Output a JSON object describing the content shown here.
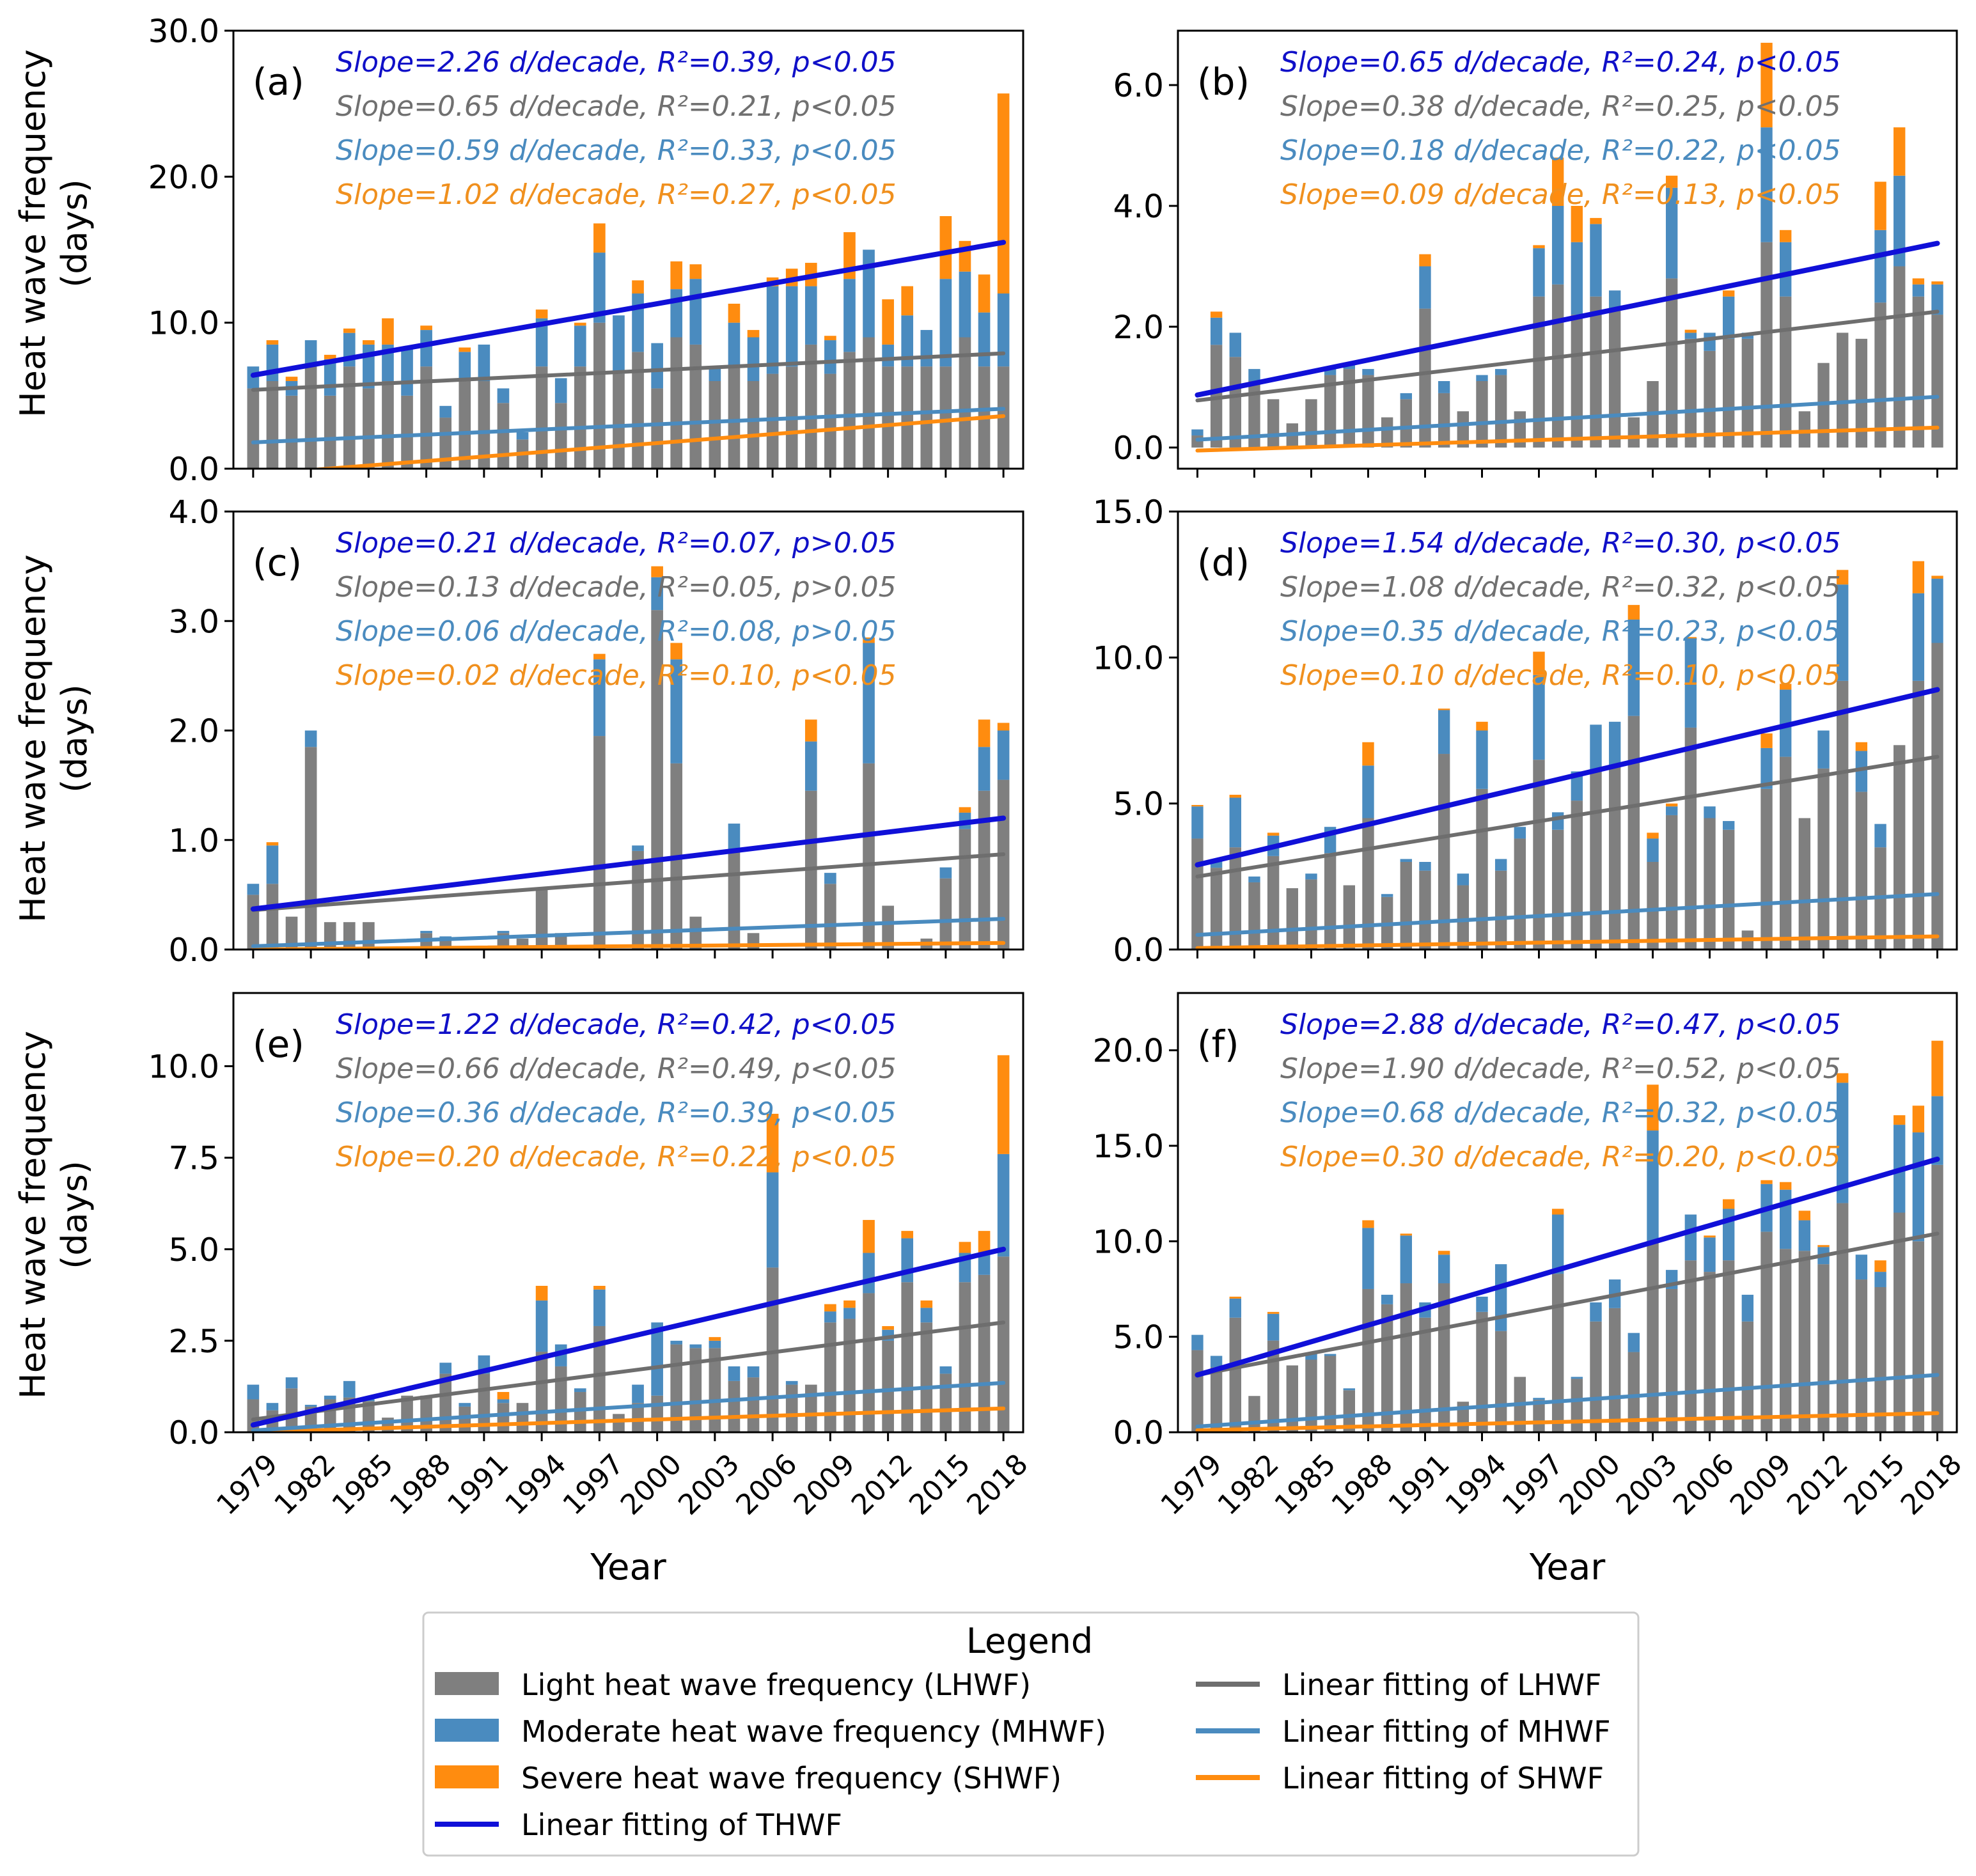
{
  "colors": {
    "light": "#7f7f7f",
    "moderate": "#4a8bbf",
    "severe": "#ff8c0f",
    "thwf_fit": "#1010d8",
    "lhwf_fit": "#6e6e6e",
    "mhwf_fit": "#4a8bbf",
    "shwf_fit": "#ff8c0f",
    "stat_total": "#1010c8",
    "stat_light": "#707070",
    "stat_moderate": "#4a8bbf",
    "stat_severe": "#f0901e"
  },
  "shared": {
    "xlabel": "Year",
    "ylabel_line1": "Heat wave frequency",
    "ylabel_line2": "(days)",
    "x_tick_labels": [
      "1979",
      "1982",
      "1985",
      "1988",
      "1991",
      "1994",
      "1997",
      "2000",
      "2003",
      "2006",
      "2009",
      "2012",
      "2015",
      "2018"
    ]
  },
  "legend": {
    "title": "Legend",
    "entries": [
      {
        "label": "Light heat wave frequency (LHWF)",
        "kind": "patch",
        "color_key": "light"
      },
      {
        "label": "Moderate heat wave frequency (MHWF)",
        "kind": "patch",
        "color_key": "moderate"
      },
      {
        "label": "Severe heat wave frequency (SHWF)",
        "kind": "patch",
        "color_key": "severe"
      },
      {
        "label": "Linear fitting of THWF",
        "kind": "line",
        "color_key": "thwf_fit"
      },
      {
        "label": "Linear fitting of LHWF",
        "kind": "line",
        "color_key": "lhwf_fit"
      },
      {
        "label": "Linear fitting of MHWF",
        "kind": "line",
        "color_key": "mhwf_fit"
      },
      {
        "label": "Linear fitting of SHWF",
        "kind": "line",
        "color_key": "shwf_fit"
      }
    ]
  },
  "chart_data": [
    {
      "type": "bar",
      "panel": "(a)",
      "xlabel": "",
      "ylim": [
        0,
        30
      ],
      "yticks": [
        0,
        10,
        20,
        30
      ],
      "ytick_labels": [
        "0.0",
        "10.0",
        "20.0",
        "30.0"
      ],
      "stats": [
        "Slope=2.26 d/decade, R²=0.39, p<0.05",
        "Slope=0.65 d/decade, R²=0.21, p<0.05",
        "Slope=0.59 d/decade, R²=0.33, p<0.05",
        "Slope=1.02 d/decade, R²=0.27, p<0.05"
      ],
      "light": [
        5.5,
        6.0,
        5.0,
        7.0,
        5.0,
        7.0,
        5.5,
        6.0,
        5.0,
        7.0,
        3.5,
        6.0,
        6.0,
        4.5,
        2.0,
        7.0,
        4.5,
        7.0,
        10.0,
        6.5,
        8.0,
        5.5,
        9.0,
        8.5,
        6.0,
        7.0,
        6.0,
        6.5,
        7.0,
        8.5,
        6.5,
        8.0,
        9.0,
        7.0,
        7.0,
        7.0,
        7.0,
        9.0,
        7.0,
        7.0
      ],
      "moderate": [
        1.5,
        2.5,
        1.0,
        1.8,
        2.5,
        2.3,
        3.0,
        2.5,
        3.2,
        2.5,
        0.8,
        2.0,
        2.5,
        1.0,
        0.5,
        3.3,
        1.7,
        2.8,
        4.8,
        4.0,
        4.0,
        3.1,
        3.3,
        4.5,
        1.0,
        3.0,
        3.0,
        6.0,
        5.5,
        4.0,
        2.3,
        5.0,
        6.0,
        1.5,
        3.5,
        2.5,
        6.0,
        4.5,
        3.7,
        5.0
      ],
      "severe": [
        0,
        0.3,
        0.3,
        0,
        0.3,
        0.3,
        0.3,
        1.8,
        0,
        0.3,
        0,
        0.3,
        0,
        0,
        0,
        0.6,
        0,
        0.2,
        2.0,
        0,
        0.9,
        0,
        1.9,
        1.0,
        0,
        1.3,
        0.5,
        0.6,
        1.2,
        1.6,
        0.3,
        3.2,
        0,
        3.1,
        2.0,
        0,
        4.3,
        2.1,
        2.6,
        13.7
      ],
      "fits": {
        "thwf": [
          6.4,
          15.5
        ],
        "lhwf": [
          5.4,
          7.9
        ],
        "mhwf": [
          1.8,
          4.1
        ],
        "shwf": [
          -0.4,
          3.6
        ]
      }
    },
    {
      "type": "bar",
      "panel": "(b)",
      "xlabel": "",
      "ylim": [
        -0.35,
        6.9
      ],
      "yticks": [
        0,
        2,
        4,
        6
      ],
      "ytick_labels": [
        "0.0",
        "2.0",
        "4.0",
        "6.0"
      ],
      "stats": [
        "Slope=0.65 d/decade, R²=0.24, p<0.05",
        "Slope=0.38 d/decade, R²=0.25, p<0.05",
        "Slope=0.18 d/decade, R²=0.22, p<0.05",
        "Slope=0.09 d/decade, R²=0.13, p<0.05"
      ],
      "light": [
        0.2,
        1.7,
        1.5,
        1.1,
        0.8,
        0.4,
        0.8,
        1.2,
        1.3,
        1.2,
        0.5,
        0.8,
        2.3,
        0.9,
        0.6,
        1.1,
        1.2,
        0.6,
        2.5,
        2.7,
        2.2,
        2.5,
        2.3,
        0.5,
        1.1,
        2.8,
        1.8,
        1.6,
        1.8,
        1.8,
        3.4,
        2.5,
        0.6,
        1.4,
        1.9,
        1.8,
        2.4,
        3.0,
        2.5,
        2.2
      ],
      "moderate": [
        0.1,
        0.45,
        0.4,
        0.2,
        0,
        0,
        0,
        0.1,
        0.1,
        0.1,
        0,
        0.1,
        0.7,
        0.2,
        0,
        0.1,
        0.1,
        0,
        0.8,
        1.3,
        1.2,
        1.2,
        0.3,
        0,
        0,
        1.5,
        0.1,
        0.3,
        0.7,
        0.1,
        1.9,
        0.9,
        0,
        0,
        0,
        0,
        1.2,
        1.5,
        0.2,
        0.5
      ],
      "severe": [
        0,
        0.1,
        0,
        0,
        0,
        0,
        0,
        0,
        0,
        0,
        0,
        0,
        0.2,
        0,
        0,
        0,
        0,
        0,
        0.05,
        0.8,
        0.6,
        0.1,
        0,
        0,
        0,
        0.2,
        0.05,
        0,
        0.1,
        0,
        1.4,
        0.2,
        0,
        0,
        0,
        0,
        0.8,
        0.8,
        0.1,
        0.05
      ],
      "fits": {
        "thwf": [
          0.87,
          3.38
        ],
        "lhwf": [
          0.78,
          2.25
        ],
        "mhwf": [
          0.13,
          0.84
        ],
        "shwf": [
          -0.05,
          0.33
        ]
      }
    },
    {
      "type": "bar",
      "panel": "(c)",
      "xlabel": "",
      "ylim": [
        0,
        4
      ],
      "yticks": [
        0,
        1,
        2,
        3,
        4
      ],
      "ytick_labels": [
        "0.0",
        "1.0",
        "2.0",
        "3.0",
        "4.0"
      ],
      "stats": [
        "Slope=0.21 d/decade, R²=0.07, p>0.05",
        "Slope=0.13 d/decade, R²=0.05, p>0.05",
        "Slope=0.06 d/decade, R²=0.08, p>0.05",
        "Slope=0.02 d/decade, R²=0.10, p<0.05"
      ],
      "light": [
        0.5,
        0.6,
        0.3,
        1.85,
        0.25,
        0.25,
        0.25,
        0,
        0,
        0.15,
        0.1,
        0,
        0,
        0.15,
        0.1,
        0.55,
        0.15,
        0,
        1.95,
        0,
        0.9,
        3.1,
        1.7,
        0.3,
        0,
        0.9,
        0.15,
        0,
        0,
        1.45,
        0.6,
        0,
        1.7,
        0.4,
        0,
        0.1,
        0.65,
        1.1,
        1.45,
        1.55
      ],
      "moderate": [
        0.1,
        0.35,
        0,
        0.15,
        0,
        0,
        0,
        0,
        0,
        0.02,
        0.02,
        0,
        0,
        0.02,
        0,
        0,
        0,
        0,
        0.7,
        0,
        0.05,
        0.3,
        0.95,
        0,
        0,
        0.25,
        0,
        0,
        0,
        0.45,
        0.1,
        0,
        1.1,
        0,
        0,
        0,
        0.1,
        0.15,
        0.4,
        0.45
      ],
      "severe": [
        0,
        0.03,
        0,
        0,
        0,
        0,
        0,
        0,
        0,
        0,
        0,
        0,
        0,
        0,
        0,
        0,
        0,
        0,
        0.05,
        0,
        0,
        0.1,
        0.15,
        0,
        0,
        0,
        0,
        0,
        0,
        0.2,
        0,
        0,
        0.05,
        0,
        0,
        0,
        0,
        0.05,
        0.25,
        0.07
      ],
      "fits": {
        "thwf": [
          0.37,
          1.2
        ],
        "lhwf": [
          0.36,
          0.87
        ],
        "mhwf": [
          0.03,
          0.28
        ],
        "shwf": [
          0,
          0.06
        ]
      }
    },
    {
      "type": "bar",
      "panel": "(d)",
      "xlabel": "",
      "ylim": [
        0,
        15
      ],
      "yticks": [
        0,
        5,
        10,
        15
      ],
      "ytick_labels": [
        "0.0",
        "5.0",
        "10.0",
        "15.0"
      ],
      "stats": [
        "Slope=1.54 d/decade, R²=0.30, p<0.05",
        "Slope=1.08 d/decade, R²=0.32, p<0.05",
        "Slope=0.35 d/decade, R²=0.23, p<0.05",
        "Slope=0.10 d/decade, R²=0.10, p<0.05"
      ],
      "light": [
        3.8,
        2.8,
        3.5,
        2.3,
        3.2,
        2.1,
        2.4,
        3.3,
        2.2,
        4.5,
        1.8,
        3.0,
        2.7,
        6.7,
        2.2,
        5.5,
        2.7,
        3.8,
        6.5,
        4.1,
        5.1,
        6.1,
        6.3,
        8.0,
        3.0,
        4.6,
        7.6,
        4.5,
        4.1,
        0.65,
        5.5,
        6.6,
        4.5,
        6.2,
        9.2,
        5.4,
        3.5,
        7.0,
        9.2,
        10.5
      ],
      "moderate": [
        1.1,
        0.3,
        1.7,
        0.2,
        0.7,
        0,
        0.2,
        0.9,
        0,
        1.8,
        0.1,
        0.1,
        0.3,
        1.5,
        0.4,
        2.0,
        0.4,
        0.4,
        2.9,
        0.6,
        1.0,
        1.6,
        1.5,
        3.3,
        0.8,
        0.3,
        3.0,
        0.4,
        0.3,
        0,
        1.4,
        2.3,
        0,
        1.3,
        3.3,
        1.4,
        0.8,
        0,
        3.0,
        2.2
      ],
      "severe": [
        0.05,
        0,
        0.1,
        0,
        0.1,
        0,
        0,
        0,
        0,
        0.8,
        0,
        0,
        0,
        0.05,
        0,
        0.3,
        0,
        0,
        0.8,
        0,
        0,
        0,
        0,
        0.5,
        0.2,
        0.1,
        0.1,
        0,
        0,
        0,
        0.5,
        0.2,
        0,
        0,
        0.5,
        0.3,
        0,
        0,
        1.1,
        0.1
      ],
      "fits": {
        "thwf": [
          2.9,
          8.9
        ],
        "lhwf": [
          2.5,
          6.6
        ],
        "mhwf": [
          0.5,
          1.9
        ],
        "shwf": [
          0.05,
          0.45
        ]
      }
    },
    {
      "type": "bar",
      "panel": "(e)",
      "xlabel": "Year",
      "ylim": [
        0,
        12
      ],
      "yticks": [
        0,
        2.5,
        5,
        7.5,
        10
      ],
      "ytick_labels": [
        "0.0",
        "2.5",
        "5.0",
        "7.5",
        "10.0"
      ],
      "stats": [
        "Slope=1.22 d/decade, R²=0.42, p<0.05",
        "Slope=0.66 d/decade, R²=0.49, p<0.05",
        "Slope=0.36 d/decade, R²=0.39, p<0.05",
        "Slope=0.20 d/decade, R²=0.22, p<0.05"
      ],
      "light": [
        0.9,
        0.6,
        1.2,
        0.7,
        0.9,
        0.95,
        0.85,
        0.4,
        1.0,
        1.0,
        1.6,
        0.7,
        1.6,
        0.8,
        0.8,
        2.2,
        1.8,
        1.1,
        2.9,
        0.5,
        0.8,
        1.0,
        2.4,
        2.3,
        2.3,
        1.4,
        1.5,
        4.5,
        1.3,
        1.3,
        3.0,
        3.1,
        3.8,
        2.5,
        4.1,
        3.0,
        1.6,
        4.1,
        4.3,
        4.8
      ],
      "moderate": [
        0.4,
        0.2,
        0.3,
        0.05,
        0.1,
        0.45,
        0.05,
        0,
        0,
        0,
        0.3,
        0.1,
        0.5,
        0.1,
        0,
        1.4,
        0.6,
        0.1,
        1.0,
        0,
        0.5,
        2.0,
        0.1,
        0.1,
        0.2,
        0.4,
        0.3,
        2.6,
        0.1,
        0,
        0.3,
        0.3,
        1.1,
        0.3,
        1.2,
        0.4,
        0.2,
        0.8,
        0.6,
        2.8
      ],
      "severe": [
        0,
        0,
        0,
        0,
        0,
        0,
        0,
        0,
        0,
        0,
        0,
        0,
        0,
        0.2,
        0,
        0.4,
        0,
        0,
        0.1,
        0,
        0,
        0,
        0,
        0,
        0.1,
        0,
        0,
        1.6,
        0,
        0,
        0.2,
        0.2,
        0.9,
        0.1,
        0.2,
        0.2,
        0,
        0.3,
        0.6,
        2.7
      ],
      "fits": {
        "thwf": [
          0.2,
          5.0
        ],
        "lhwf": [
          0.35,
          3.0
        ],
        "mhwf": [
          0.05,
          1.35
        ],
        "shwf": [
          0,
          0.65
        ]
      }
    },
    {
      "type": "bar",
      "panel": "(f)",
      "xlabel": "Year",
      "ylim": [
        0,
        23
      ],
      "yticks": [
        0,
        5,
        10,
        15,
        20
      ],
      "ytick_labels": [
        "0.0",
        "5.0",
        "10.0",
        "15.0",
        "20.0"
      ],
      "stats": [
        "Slope=2.88 d/decade, R²=0.47, p<0.05",
        "Slope=1.90 d/decade, R²=0.52, p<0.05",
        "Slope=0.68 d/decade, R²=0.32, p<0.05",
        "Slope=0.30 d/decade, R²=0.20, p<0.05"
      ],
      "light": [
        4.3,
        3.4,
        6.0,
        1.9,
        4.8,
        3.5,
        3.8,
        4.0,
        2.2,
        7.5,
        6.7,
        7.8,
        6.0,
        7.8,
        1.6,
        6.3,
        5.3,
        2.9,
        1.7,
        8.3,
        2.8,
        5.8,
        6.5,
        4.2,
        10.0,
        7.5,
        9.0,
        8.4,
        9.0,
        5.8,
        10.5,
        9.6,
        9.5,
        8.8,
        12.0,
        8.0,
        7.6,
        11.5,
        10.0,
        14.0
      ],
      "moderate": [
        0.8,
        0.6,
        1.0,
        0,
        1.4,
        0,
        0.3,
        0.1,
        0.1,
        3.2,
        0.5,
        2.5,
        0.8,
        1.5,
        0,
        0.8,
        3.5,
        0,
        0.1,
        3.1,
        0.1,
        1.0,
        1.5,
        1.0,
        5.8,
        1.0,
        2.4,
        1.8,
        2.7,
        1.4,
        2.5,
        3.1,
        1.6,
        0.9,
        6.3,
        1.3,
        0.8,
        4.6,
        5.7,
        3.6
      ],
      "severe": [
        0,
        0,
        0.1,
        0,
        0.1,
        0,
        0,
        0,
        0,
        0.4,
        0,
        0.1,
        0,
        0.2,
        0,
        0,
        0,
        0,
        0,
        0.3,
        0,
        0,
        0,
        0,
        2.4,
        0,
        0,
        0.1,
        0.5,
        0,
        0.2,
        0.4,
        0.5,
        0.1,
        0.5,
        0,
        0.6,
        0.5,
        1.4,
        2.9
      ],
      "fits": {
        "thwf": [
          3.0,
          14.3
        ],
        "lhwf": [
          3.0,
          10.4
        ],
        "mhwf": [
          0.3,
          3.0
        ],
        "shwf": [
          0.1,
          1.0
        ]
      }
    }
  ]
}
